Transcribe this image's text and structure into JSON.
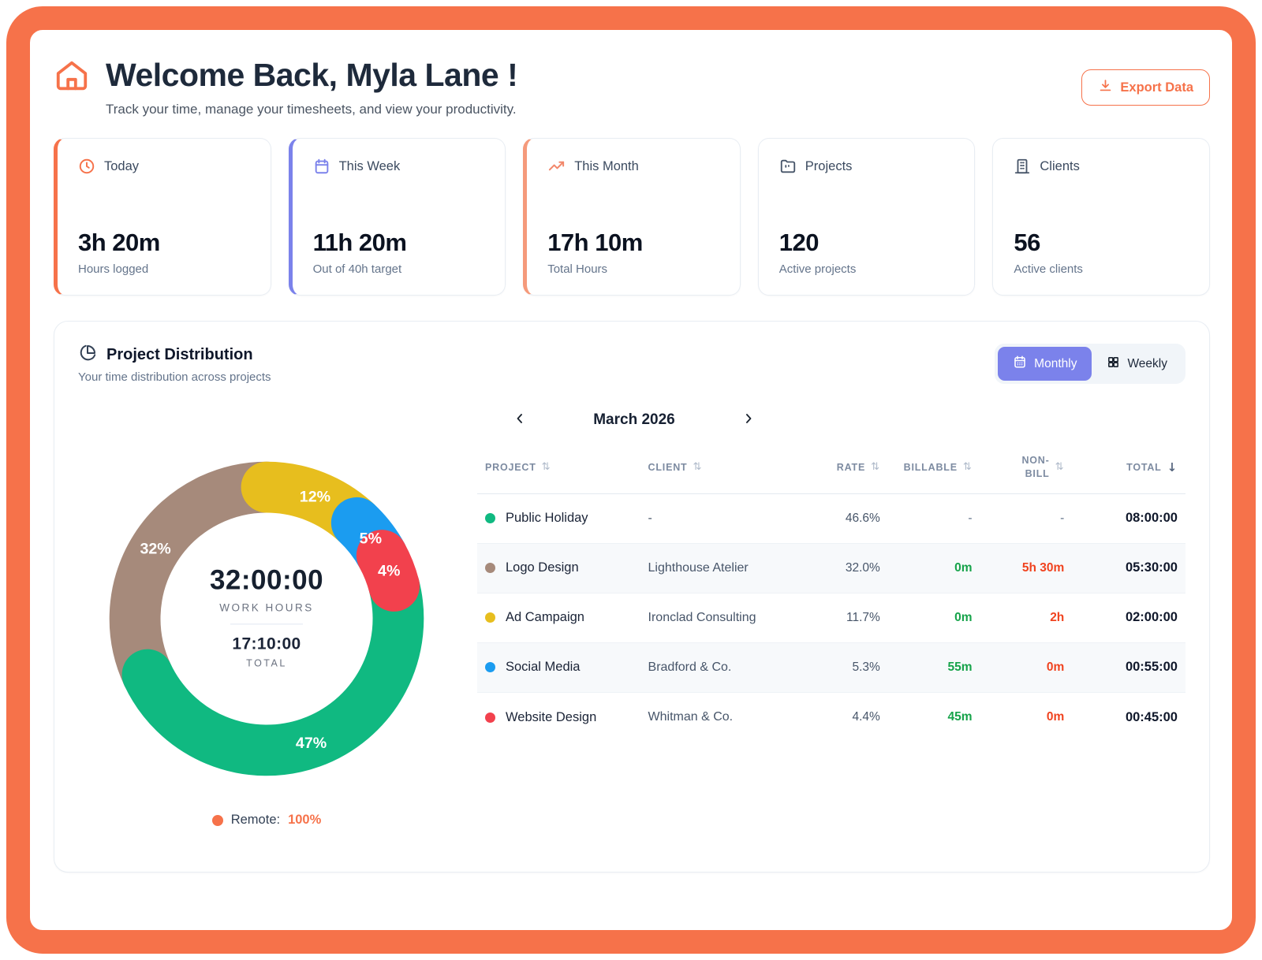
{
  "app": {
    "brand_color": "#F6724A"
  },
  "header": {
    "title": "Welcome Back, Myla Lane !",
    "subtitle": "Track your time, manage your timesheets, and view your productivity.",
    "export_button": "Export Data"
  },
  "stats": [
    {
      "label": "Today",
      "value": "3h 20m",
      "sub": "Hours logged",
      "accent": "#F6724A",
      "icon": "clock-icon"
    },
    {
      "label": "This Week",
      "value": "11h 20m",
      "sub": "Out of 40h target",
      "accent": "#7B82EB",
      "icon": "calendar-icon"
    },
    {
      "label": "This Month",
      "value": "17h 10m",
      "sub": "Total Hours",
      "accent": "#F59A7B",
      "icon": "trending-up-icon"
    },
    {
      "label": "Projects",
      "value": "120",
      "sub": "Active projects",
      "accent": "",
      "icon": "folder-icon"
    },
    {
      "label": "Clients",
      "value": "56",
      "sub": "Active clients",
      "accent": "",
      "icon": "building-icon"
    }
  ],
  "distribution": {
    "title": "Project Distribution",
    "subtitle": "Your time distribution across projects",
    "toggle": {
      "monthly": "Monthly",
      "weekly": "Weekly",
      "active": "Monthly",
      "active_color": "#7B82EB"
    },
    "month": "March 2026"
  },
  "chart_data": {
    "type": "pie",
    "title": "Project Distribution — March 2026",
    "center": {
      "value": "32:00:00",
      "value_label": "WORK HOURS",
      "total": "17:10:00",
      "total_label": "TOTAL"
    },
    "segments": [
      {
        "name": "Ad Campaign",
        "label": "12%",
        "value": 12,
        "color": "#E7BE1E"
      },
      {
        "name": "Social Media",
        "label": "5%",
        "value": 5,
        "color": "#1B9CF0"
      },
      {
        "name": "Website Design",
        "label": "4%",
        "value": 4,
        "color": "#F2414D"
      },
      {
        "name": "Public Holiday",
        "label": "47%",
        "value": 47,
        "color": "#10B981"
      },
      {
        "name": "Logo Design",
        "label": "32%",
        "value": 32,
        "color": "#A68A7B"
      }
    ],
    "draw_order": [
      "Logo Design",
      "Ad Campaign",
      "Social Media",
      "Public Holiday",
      "Website Design"
    ],
    "legend": {
      "label": "Remote:",
      "value": "100%",
      "dot_color": "#F6724A"
    }
  },
  "table": {
    "columns": [
      {
        "label": "PROJECT",
        "sort": "both"
      },
      {
        "label": "CLIENT",
        "sort": "both"
      },
      {
        "label": "RATE",
        "sort": "both"
      },
      {
        "label": "BILLABLE",
        "sort": "both"
      },
      {
        "label": "NON-BILL",
        "sort": "both"
      },
      {
        "label": "TOTAL",
        "sort": "desc"
      }
    ],
    "billable_color": "#16A34A",
    "nonbill_color": "#F0431F",
    "rows": [
      {
        "project": "Public Holiday",
        "dot": "#10B981",
        "client": "-",
        "rate": "46.6%",
        "billable": "-",
        "nonbill": "-",
        "total": "08:00:00"
      },
      {
        "project": "Logo Design",
        "dot": "#A68A7B",
        "client": "Lighthouse Atelier",
        "rate": "32.0%",
        "billable": "0m",
        "nonbill": "5h 30m",
        "total": "05:30:00"
      },
      {
        "project": "Ad Campaign",
        "dot": "#E7BE1E",
        "client": "Ironclad Consulting",
        "rate": "11.7%",
        "billable": "0m",
        "nonbill": "2h",
        "total": "02:00:00"
      },
      {
        "project": "Social Media",
        "dot": "#1B9CF0",
        "client": "Bradford & Co.",
        "rate": "5.3%",
        "billable": "55m",
        "nonbill": "0m",
        "total": "00:55:00"
      },
      {
        "project": "Website Design",
        "dot": "#F2414D",
        "client": "Whitman & Co.",
        "rate": "4.4%",
        "billable": "45m",
        "nonbill": "0m",
        "total": "00:45:00"
      }
    ]
  },
  "icons": {
    "sort_both": "⇅",
    "sort_desc": "↓"
  }
}
